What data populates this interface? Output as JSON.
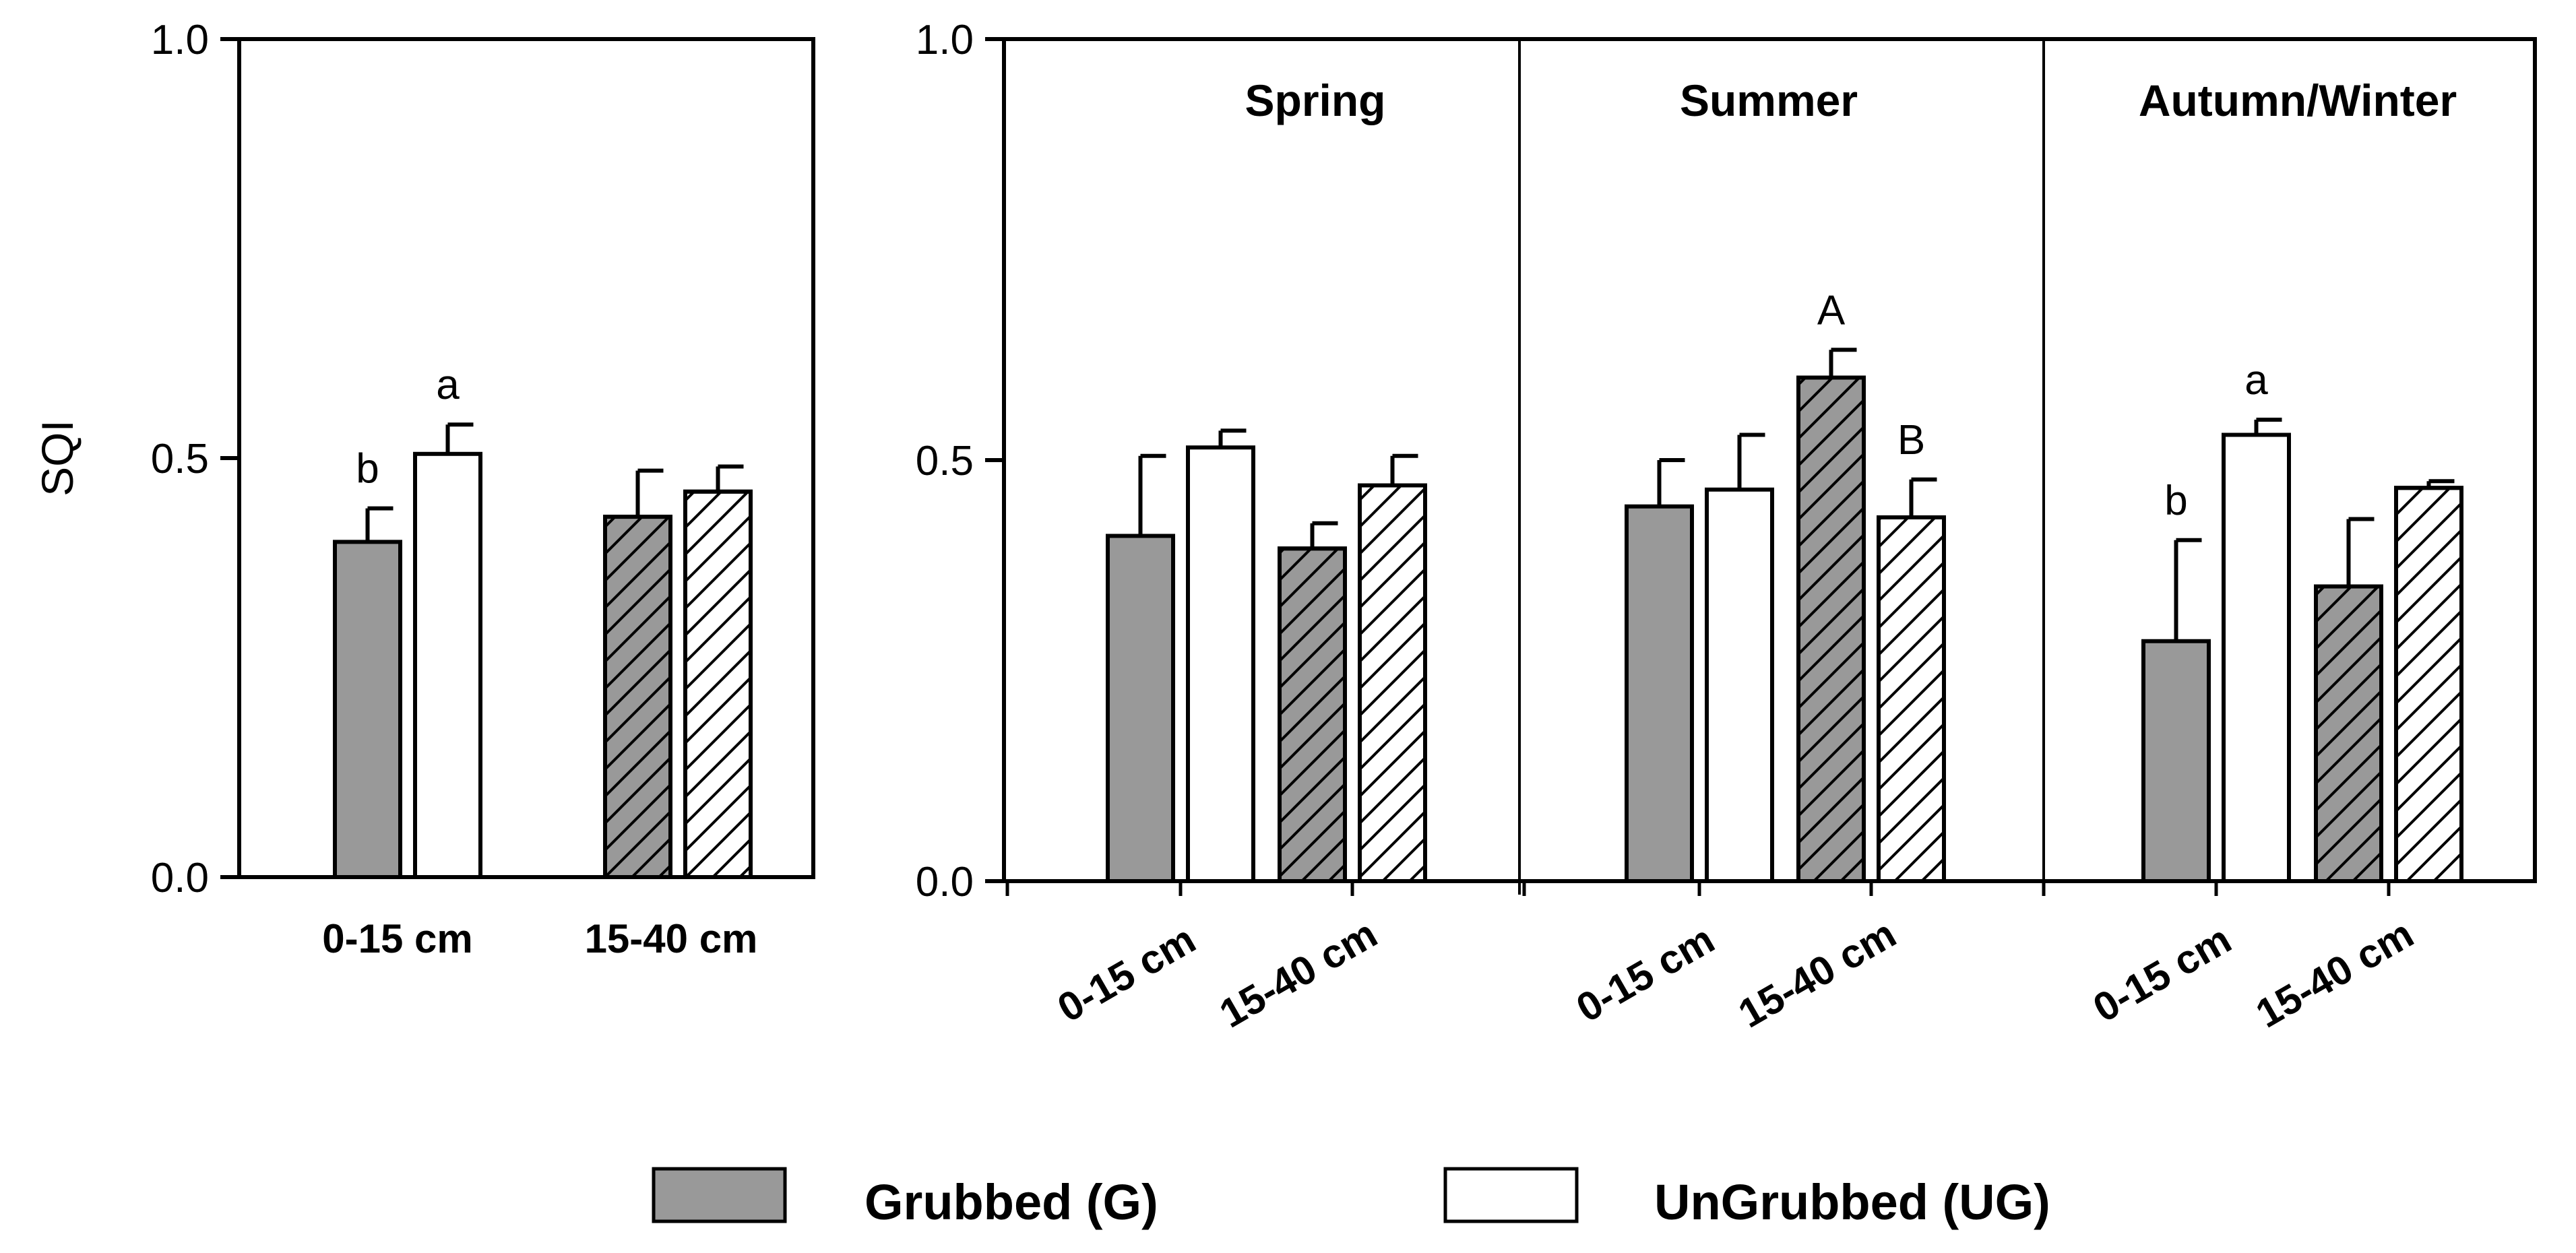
{
  "chart_data": [
    {
      "type": "bar",
      "panel": "overall",
      "ylabel": "SQI",
      "ylim": [
        0,
        1.0
      ],
      "yticks": [
        "0.0",
        "0.5",
        "1.0"
      ],
      "categories": [
        "0-15 cm",
        "15-40 cm"
      ],
      "series": [
        {
          "name": "Grubbed (G)",
          "values": [
            0.4,
            0.43
          ],
          "errors": [
            0.04,
            0.055
          ],
          "letters": [
            "b",
            ""
          ]
        },
        {
          "name": "UnGrubbed (UG)",
          "values": [
            0.505,
            0.46
          ],
          "errors": [
            0.035,
            0.03
          ],
          "letters": [
            "a",
            ""
          ]
        }
      ]
    },
    {
      "type": "bar",
      "panel": "seasonal",
      "ylim": [
        0,
        1.0
      ],
      "yticks": [
        "0.0",
        "0.5",
        "1.0"
      ],
      "groups": [
        {
          "title": "Spring",
          "categories": [
            "0-15 cm",
            "15-40 cm"
          ],
          "series": [
            {
              "name": "Grubbed (G)",
              "values": [
                0.41,
                0.395
              ],
              "errors": [
                0.095,
                0.03
              ],
              "letters": [
                "",
                ""
              ]
            },
            {
              "name": "UnGrubbed (UG)",
              "values": [
                0.515,
                0.47
              ],
              "errors": [
                0.02,
                0.035
              ],
              "letters": [
                "",
                ""
              ]
            }
          ]
        },
        {
          "title": "Summer",
          "categories": [
            "0-15 cm",
            "15-40 cm"
          ],
          "series": [
            {
              "name": "Grubbed (G)",
              "values": [
                0.445,
                0.598
              ],
              "errors": [
                0.055,
                0.033
              ],
              "letters": [
                "",
                "A"
              ]
            },
            {
              "name": "UnGrubbed (UG)",
              "values": [
                0.465,
                0.432
              ],
              "errors": [
                0.065,
                0.045
              ],
              "letters": [
                "",
                "B"
              ]
            }
          ]
        },
        {
          "title": "Autumn/Winter",
          "categories": [
            "0-15 cm",
            "15-40 cm"
          ],
          "series": [
            {
              "name": "Grubbed (G)",
              "values": [
                0.285,
                0.35
              ],
              "errors": [
                0.12,
                0.08
              ],
              "letters": [
                "b",
                ""
              ]
            },
            {
              "name": "UnGrubbed (UG)",
              "values": [
                0.53,
                0.467
              ],
              "errors": [
                0.018,
                0.008
              ],
              "letters": [
                "a",
                ""
              ]
            }
          ]
        }
      ]
    }
  ],
  "legend": [
    {
      "label": "Grubbed (G)",
      "color": "#999999"
    },
    {
      "label": "UnGrubbed (UG)",
      "color": "#ffffff"
    }
  ]
}
